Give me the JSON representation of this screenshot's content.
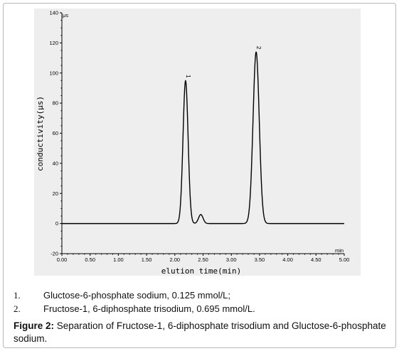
{
  "chart_data": {
    "type": "line",
    "xlabel": "elution time(min)",
    "x_unit": "min",
    "ylabel": "conductivity(μs)",
    "y_unit": "μs",
    "xlim": [
      0,
      5
    ],
    "ylim": [
      -20,
      140
    ],
    "x_ticks": [
      "0.00",
      "0.50",
      "1.00",
      "1.50",
      "2.00",
      "2.50",
      "3.00",
      "3.50",
      "4.00",
      "4.50",
      "5.00"
    ],
    "y_ticks": [
      "-20",
      "0",
      "20",
      "40",
      "60",
      "80",
      "100",
      "120",
      "140"
    ],
    "baseline": 0,
    "peaks": [
      {
        "label": "1",
        "center": 2.19,
        "height": 95,
        "width": 0.045
      },
      {
        "label": "",
        "center": 2.46,
        "height": 6,
        "width": 0.04
      },
      {
        "label": "2",
        "center": 3.44,
        "height": 114,
        "width": 0.055
      }
    ],
    "series": [
      {
        "x": [
          0,
          1.9,
          2.0,
          2.05,
          2.1,
          2.14,
          2.17,
          2.19,
          2.21,
          2.24,
          2.28,
          2.33,
          2.38,
          2.42,
          2.46,
          2.5,
          2.55,
          2.65,
          2.9,
          3.2,
          3.28,
          3.33,
          3.37,
          3.4,
          3.42,
          3.44,
          3.46,
          3.49,
          3.52,
          3.56,
          3.6,
          3.68,
          3.8,
          4.2,
          5.0
        ],
        "y": [
          0,
          0,
          0.2,
          1.5,
          11,
          45,
          82,
          95,
          86,
          46,
          9,
          1.5,
          1.2,
          3.5,
          6,
          3.5,
          0.8,
          0.2,
          0.5,
          0.3,
          4,
          25,
          70,
          101,
          112,
          114,
          110,
          88,
          50,
          16,
          4,
          0.6,
          0.2,
          0,
          0
        ]
      }
    ]
  },
  "notes": [
    {
      "num": "1.",
      "text": "Gluctose-6-phosphate sodium, 0.125 mmol/L;"
    },
    {
      "num": "2.",
      "text": "Fructose-1, 6-diphosphate trisodium, 0.695 mmol/L."
    }
  ],
  "caption": {
    "label": "Figure 2:",
    "text": " Separation of Fructose-1, 6-diphosphate trisodium and Gluctose-6-phosphate sodium."
  }
}
